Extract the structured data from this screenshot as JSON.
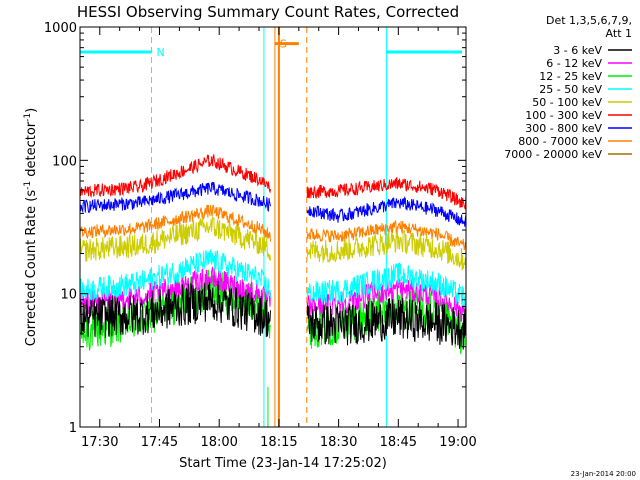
{
  "chart_data": {
    "type": "line",
    "title": "HESSI Observing Summary Count Rates, Corrected",
    "xlabel": "Start Time (23-Jan-14 17:25:02)",
    "ylabel": "Corrected Count Rate (s⁻¹ detector⁻¹)",
    "ylabel_main": "Corrected Count Rate (s",
    "ylabel_sup1": "-1",
    "ylabel_mid": " detector",
    "ylabel_sup2": "-1",
    "ylabel_end": ")",
    "yscale": "log",
    "ylim": [
      1,
      1000
    ],
    "xlim": [
      "17:25:02",
      "19:02:00"
    ],
    "x_ticks": [
      "17:30",
      "17:45",
      "18:00",
      "18:15",
      "18:30",
      "18:45",
      "19:00"
    ],
    "y_ticks": [
      "1",
      "10",
      "100",
      "1000"
    ],
    "legend_header": [
      "Det 1,3,5,6,7,9,",
      "Att 1"
    ],
    "legend_position": "right",
    "series": [
      {
        "name": "3 - 6 keV",
        "color": "#000000"
      },
      {
        "name": "6 - 12 keV",
        "color": "#ff00ff"
      },
      {
        "name": "12 - 25 keV",
        "color": "#00ee00"
      },
      {
        "name": "25 - 50 keV",
        "color": "#00ffff"
      },
      {
        "name": "50 - 100 keV",
        "color": "#cccc00"
      },
      {
        "name": "100 - 300 keV",
        "color": "#ff0000"
      },
      {
        "name": "300 - 800 keV",
        "color": "#0000ff"
      },
      {
        "name": "800 - 7000 keV",
        "color": "#ff8000"
      },
      {
        "name": "7000 - 20000 keV",
        "color": "#a07000"
      }
    ],
    "series_levels": [
      {
        "name": "100 - 300 keV",
        "points": [
          [
            "17:25",
            58
          ],
          [
            "17:40",
            63
          ],
          [
            "17:58",
            100
          ],
          [
            "18:10",
            72
          ],
          [
            "18:13",
            62
          ],
          [
            "18:22",
            58
          ],
          [
            "18:30",
            59
          ],
          [
            "18:45",
            67
          ],
          [
            "18:55",
            60
          ],
          [
            "19:01",
            48
          ]
        ]
      },
      {
        "name": "300 - 800 keV",
        "points": [
          [
            "17:25",
            45
          ],
          [
            "17:40",
            48
          ],
          [
            "17:58",
            62
          ],
          [
            "18:10",
            50
          ],
          [
            "18:13",
            46
          ],
          [
            "18:22",
            43
          ],
          [
            "18:30",
            38
          ],
          [
            "18:45",
            48
          ],
          [
            "18:55",
            42
          ],
          [
            "19:01",
            35
          ]
        ]
      },
      {
        "name": "800 - 7000 keV",
        "points": [
          [
            "17:25",
            29
          ],
          [
            "17:40",
            31
          ],
          [
            "17:58",
            42
          ],
          [
            "18:10",
            31
          ],
          [
            "18:13",
            27
          ],
          [
            "18:22",
            28
          ],
          [
            "18:30",
            27
          ],
          [
            "18:45",
            32
          ],
          [
            "18:55",
            28
          ],
          [
            "19:01",
            23
          ]
        ]
      },
      {
        "name": "50 - 100 keV",
        "points": [
          [
            "17:25",
            21
          ],
          [
            "17:40",
            23
          ],
          [
            "17:58",
            32
          ],
          [
            "18:10",
            24
          ],
          [
            "18:13",
            21
          ],
          [
            "18:22",
            21
          ],
          [
            "18:30",
            21
          ],
          [
            "18:45",
            25
          ],
          [
            "18:55",
            22
          ],
          [
            "19:01",
            18
          ]
        ]
      },
      {
        "name": "25 - 50 keV",
        "points": [
          [
            "17:25",
            10.5
          ],
          [
            "17:40",
            12
          ],
          [
            "17:58",
            18
          ],
          [
            "18:10",
            13
          ],
          [
            "18:13",
            10.5
          ],
          [
            "18:22",
            10
          ],
          [
            "18:30",
            10.5
          ],
          [
            "18:45",
            14
          ],
          [
            "18:55",
            12
          ],
          [
            "19:01",
            9.5
          ]
        ]
      },
      {
        "name": "6 - 12 keV",
        "points": [
          [
            "17:25",
            8.5
          ],
          [
            "17:40",
            9.5
          ],
          [
            "17:58",
            13
          ],
          [
            "18:10",
            10
          ],
          [
            "18:13",
            8.5
          ],
          [
            "18:22",
            8
          ],
          [
            "18:30",
            8.5
          ],
          [
            "18:45",
            11
          ],
          [
            "18:55",
            9.5
          ],
          [
            "19:01",
            7.5
          ]
        ]
      },
      {
        "name": "12 - 25 keV",
        "points": [
          [
            "17:25",
            5
          ],
          [
            "17:40",
            6.5
          ],
          [
            "17:58",
            11
          ],
          [
            "18:10",
            8
          ],
          [
            "18:13",
            6.5
          ],
          [
            "18:22",
            5.5
          ],
          [
            "18:30",
            6
          ],
          [
            "18:45",
            8
          ],
          [
            "18:55",
            7
          ],
          [
            "19:01",
            5
          ]
        ]
      },
      {
        "name": "3 - 6 keV",
        "points": [
          [
            "17:25",
            6.5
          ],
          [
            "17:40",
            7
          ],
          [
            "17:58",
            9
          ],
          [
            "18:10",
            7
          ],
          [
            "18:13",
            6.5
          ],
          [
            "18:22",
            6
          ],
          [
            "18:30",
            5.8
          ],
          [
            "18:45",
            6.5
          ],
          [
            "18:55",
            6
          ],
          [
            "19:01",
            5.5
          ]
        ]
      }
    ],
    "data_gap": [
      "18:13:00",
      "18:22:00"
    ],
    "annotations": [
      {
        "label": "N",
        "color": "#00ffff",
        "band_start": "17:25:02",
        "band_end": "17:43:00",
        "marker_time": "17:43:00",
        "level": 650,
        "line_style": "dashed"
      },
      {
        "label": "S",
        "color": "#ff8000",
        "band_start": "18:14:00",
        "band_end": "18:20:00",
        "marker_time": "18:14:00",
        "level": 750,
        "line_style": "solid"
      },
      {
        "label": "",
        "color": "#00ffff",
        "band_start": "18:42:00",
        "band_end": "19:01:00",
        "marker_time": "18:42:00",
        "level": 650,
        "line_style": "solid"
      }
    ],
    "grid": false
  },
  "timestamp": "23-Jan-2014 20:00"
}
